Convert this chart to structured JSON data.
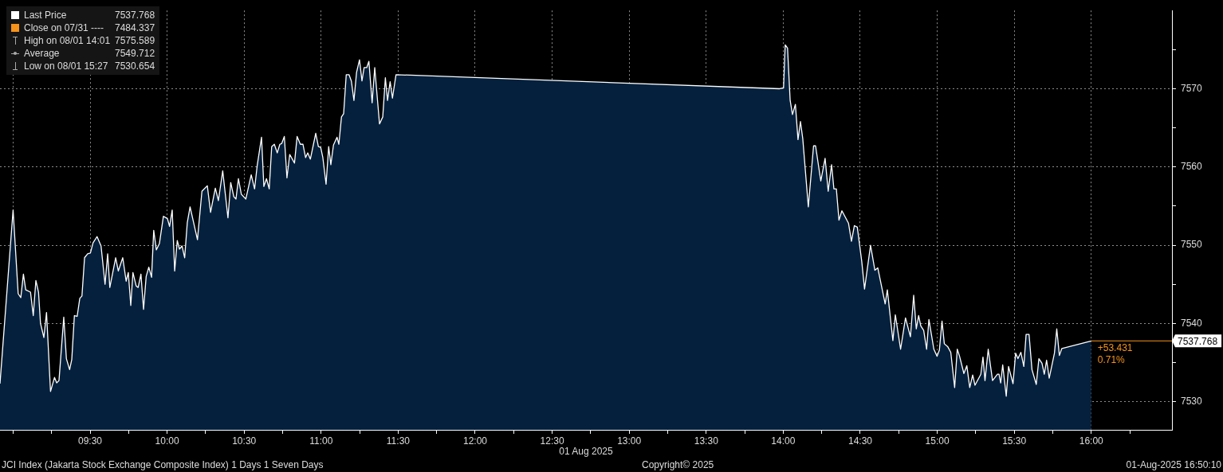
{
  "chart_data": {
    "type": "area",
    "xlabel": "01 Aug 2025",
    "x": [
      8.915,
      9.0,
      9.033,
      9.05,
      9.067,
      9.082,
      9.113,
      9.131,
      9.148,
      9.165,
      9.178,
      9.2,
      9.217,
      9.243,
      9.269,
      9.283,
      9.298,
      9.329,
      9.346,
      9.367,
      9.381,
      9.398,
      9.416,
      9.433,
      9.447,
      9.464,
      9.484,
      9.502,
      9.519,
      9.545,
      9.571,
      9.597,
      9.614,
      9.628,
      9.666,
      9.683,
      9.712,
      9.734,
      9.748,
      9.764,
      9.778,
      9.799,
      9.812,
      9.83,
      9.847,
      9.864,
      9.881,
      9.899,
      9.913,
      9.93,
      9.95,
      9.976,
      10.002,
      10.016,
      10.033,
      10.049,
      10.066,
      10.08,
      10.097,
      10.114,
      10.131,
      10.149,
      10.197,
      10.226,
      10.261,
      10.282,
      10.313,
      10.333,
      10.361,
      10.395,
      10.413,
      10.433,
      10.447,
      10.463,
      10.482,
      10.511,
      10.546,
      10.568,
      10.585,
      10.613,
      10.628,
      10.645,
      10.663,
      10.679,
      10.696,
      10.715,
      10.732,
      10.744,
      10.761,
      10.778,
      10.796,
      10.827,
      10.844,
      10.865,
      10.882,
      10.899,
      10.913,
      10.93,
      10.965,
      10.982,
      10.997,
      11.011,
      11.032,
      11.049,
      11.063,
      11.08,
      11.103,
      11.115,
      11.132,
      11.146,
      11.163,
      11.181,
      11.196,
      11.213,
      11.23,
      11.249,
      11.265,
      11.279,
      11.296,
      11.31,
      11.331,
      11.348,
      11.379,
      11.4,
      11.417,
      11.431,
      11.448,
      11.463,
      11.486,
      13.977,
      14.002,
      14.013,
      14.028,
      14.045,
      14.06,
      14.079,
      14.096,
      14.112,
      14.127,
      14.163,
      14.197,
      14.21,
      14.244,
      14.272,
      14.292,
      14.314,
      14.329,
      14.345,
      14.362,
      14.381,
      14.424,
      14.443,
      14.462,
      14.481,
      14.51,
      14.528,
      14.567,
      14.595,
      14.614,
      14.662,
      14.676,
      14.712,
      14.728,
      14.762,
      14.794,
      14.826,
      14.847,
      14.864,
      14.879,
      14.893,
      14.912,
      14.931,
      14.946,
      14.978,
      14.999,
      15.014,
      15.031,
      15.046,
      15.069,
      15.088,
      15.113,
      15.13,
      15.145,
      15.173,
      15.192,
      15.211,
      15.23,
      15.245,
      15.283,
      15.297,
      15.31,
      15.331,
      15.359,
      15.391,
      15.401,
      15.412,
      15.425,
      15.448,
      15.463,
      15.492,
      15.509,
      15.524,
      15.543,
      15.562,
      15.577,
      15.596,
      15.615,
      15.643,
      15.66,
      15.68,
      15.695,
      15.71,
      15.727,
      15.761,
      15.776,
      15.793,
      15.809,
      16.0
    ],
    "series": [
      {
        "name": "Last Price",
        "color": "#ffffff",
        "values": [
          7532.3,
          7554.5,
          7543.8,
          7543.3,
          7546.3,
          7544.3,
          7544.0,
          7541.0,
          7545.5,
          7544.0,
          7540.0,
          7538.2,
          7541.4,
          7531.3,
          7533.1,
          7532.4,
          7532.7,
          7540.8,
          7535.5,
          7534.1,
          7535.4,
          7541.0,
          7540.9,
          7543.2,
          7543.5,
          7548.4,
          7548.9,
          7549.0,
          7550.3,
          7551.1,
          7549.9,
          7545.0,
          7548.9,
          7544.6,
          7548.4,
          7546.7,
          7548.4,
          7545.4,
          7546.5,
          7542.3,
          7546.5,
          7544.8,
          7544.6,
          7546.3,
          7541.8,
          7546.0,
          7547.2,
          7545.9,
          7551.9,
          7549.4,
          7550.2,
          7553.7,
          7553.4,
          7552.4,
          7554.5,
          7546.7,
          7550.6,
          7549.5,
          7549.9,
          7548.4,
          7552.9,
          7554.9,
          7550.7,
          7556.9,
          7557.6,
          7554.2,
          7557.3,
          7555.7,
          7559.5,
          7553.5,
          7558.0,
          7556.2,
          7555.9,
          7558.5,
          7556.5,
          7555.9,
          7559.0,
          7557.2,
          7560.2,
          7563.8,
          7557.5,
          7558.5,
          7557.2,
          7562.6,
          7562.9,
          7561.8,
          7562.9,
          7563.0,
          7563.9,
          7558.6,
          7561.6,
          7560.5,
          7563.9,
          7562.9,
          7562.9,
          7561.2,
          7561.8,
          7561.0,
          7564.3,
          7562.6,
          7562.5,
          7561.2,
          7557.8,
          7562.6,
          7560.3,
          7562.8,
          7563.8,
          7562.9,
          7566.4,
          7566.8,
          7571.8,
          7571.8,
          7571.0,
          7568.5,
          7572.1,
          7573.7,
          7571.0,
          7572.7,
          7572.7,
          7573.5,
          7568.2,
          7572.7,
          7565.5,
          7566.4,
          7571.4,
          7568.5,
          7570.9,
          7568.8,
          7571.8,
          7570.0,
          7570.1,
          7575.6,
          7575.2,
          7568.5,
          7566.7,
          7568.0,
          7563.5,
          7565.8,
          7563.6,
          7554.9,
          7562.7,
          7562.7,
          7558.2,
          7561.1,
          7556.9,
          7560.3,
          7557.2,
          7557.2,
          7553.2,
          7554.4,
          7552.8,
          7550.5,
          7552.5,
          7552.3,
          7547.9,
          7544.4,
          7550.0,
          7546.8,
          7547.1,
          7542.5,
          7544.3,
          7537.8,
          7541.1,
          7536.7,
          7540.7,
          7538.3,
          7543.6,
          7539.3,
          7541.0,
          7539.7,
          7539.1,
          7536.7,
          7540.5,
          7536.7,
          7535.8,
          7536.6,
          7540.3,
          7537.4,
          7537.0,
          7536.3,
          7531.8,
          7536.7,
          7535.8,
          7533.6,
          7534.6,
          7531.8,
          7533.4,
          7532.1,
          7533.5,
          7535.7,
          7532.7,
          7536.7,
          7532.7,
          7533.5,
          7533.5,
          7532.4,
          7534.7,
          7530.7,
          7534.5,
          7532.3,
          7536.2,
          7535.5,
          7536.3,
          7534.5,
          7538.6,
          7538.6,
          7534.1,
          7532.2,
          7535.5,
          7534.9,
          7533.5,
          7535.3,
          7533.0,
          7536.2,
          7539.3,
          7535.9,
          7536.8,
          7537.768
        ]
      }
    ],
    "xlim": [
      8.915,
      16.524
    ],
    "xticks": [
      {
        "value": 9,
        "label": null
      },
      {
        "value": 9.25,
        "label": null
      },
      {
        "value": 9.5,
        "label": "09:30"
      },
      {
        "value": 9.75,
        "label": null
      },
      {
        "value": 10,
        "label": "10:00"
      },
      {
        "value": 10.25,
        "label": null
      },
      {
        "value": 10.5,
        "label": "10:30"
      },
      {
        "value": 10.75,
        "label": null
      },
      {
        "value": 11,
        "label": "11:00"
      },
      {
        "value": 11.25,
        "label": null
      },
      {
        "value": 11.5,
        "label": "11:30"
      },
      {
        "value": 11.75,
        "label": null
      },
      {
        "value": 12,
        "label": "12:00"
      },
      {
        "value": 12.25,
        "label": null
      },
      {
        "value": 12.5,
        "label": "12:30"
      },
      {
        "value": 12.75,
        "label": null
      },
      {
        "value": 13,
        "label": "13:00"
      },
      {
        "value": 13.25,
        "label": null
      },
      {
        "value": 13.5,
        "label": "13:30"
      },
      {
        "value": 13.75,
        "label": null
      },
      {
        "value": 14,
        "label": "14:00"
      },
      {
        "value": 14.25,
        "label": null
      },
      {
        "value": 14.5,
        "label": "14:30"
      },
      {
        "value": 14.75,
        "label": null
      },
      {
        "value": 15,
        "label": "15:00"
      },
      {
        "value": 15.25,
        "label": null
      },
      {
        "value": 15.5,
        "label": "15:30"
      },
      {
        "value": 15.75,
        "label": null
      },
      {
        "value": 16,
        "label": "16:00"
      },
      {
        "value": 16.25,
        "label": null
      }
    ],
    "ylim": [
      7526.4,
      7580
    ],
    "yticks": [
      7530,
      {
        "value": 7535,
        "label": null
      },
      7540,
      {
        "value": 7545,
        "label": null
      },
      7550,
      {
        "value": 7555,
        "label": null
      },
      7560,
      {
        "value": 7565,
        "label": null
      },
      7570,
      {
        "value": 7575,
        "label": null
      }
    ],
    "grid": true,
    "legend": "top left",
    "marker": "none",
    "ref_lines": [
      {
        "axis": "y",
        "value": 7537.768,
        "label": "7537.768",
        "color": "#f7931a"
      }
    ],
    "annotations": [
      "Close on 07/31 ---- 7484.337",
      "High on 08/01 14:01 7575.589",
      "Average 7549.712",
      "Low on 08/01 15:27 7530.654",
      {
        "text": "+53.431",
        "x": 16,
        "y": 7537.768
      },
      {
        "text": "0.71%",
        "x": 16,
        "y": 7537.768
      },
      "JCI Index (Jakarta Stock Exchange Composite Index) 1 Days 1 Seven Days",
      "Copyright© 2025",
      "01-Aug-2025 16:50:10"
    ]
  }
}
